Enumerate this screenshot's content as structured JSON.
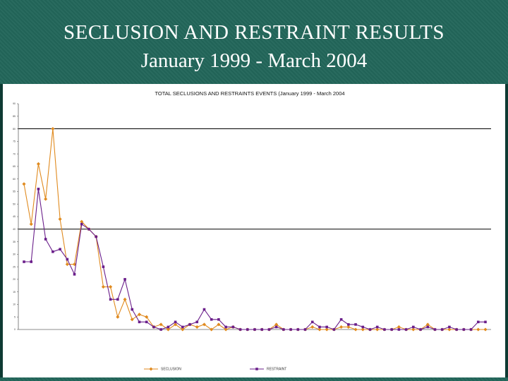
{
  "slide": {
    "title_line1": "SECLUSION AND RESTRAINT RESULTS",
    "title_line2": "January 1999 - March 2004"
  },
  "chart_data": {
    "type": "line",
    "title": "TOTAL SECLUSIONS AND RESTRAINTS EVENTS (January 1999 - March 2004",
    "xlabel": "",
    "ylabel": "",
    "ylim": [
      0,
      90
    ],
    "yticks": [
      0,
      5,
      10,
      15,
      20,
      25,
      30,
      35,
      40,
      45,
      50,
      55,
      60,
      65,
      70,
      75,
      80,
      85,
      90
    ],
    "reference_lines": [
      40,
      80
    ],
    "legend_position": "bottom",
    "colors": {
      "SECLUSION": "#e08a1e",
      "RESTRAINT": "#6a1e8a"
    },
    "series": [
      {
        "name": "SECLUSION",
        "values": [
          58,
          42,
          66,
          52,
          80,
          44,
          26,
          26,
          43,
          40,
          37,
          17,
          17,
          5,
          12,
          4,
          6,
          5,
          1,
          2,
          0,
          2,
          0,
          2,
          1,
          2,
          0,
          2,
          0,
          1,
          0,
          0,
          0,
          0,
          0,
          2,
          0,
          0,
          0,
          0,
          1,
          0,
          0,
          0,
          1,
          1,
          0,
          0,
          0,
          0,
          0,
          0,
          1,
          0,
          0,
          0,
          2,
          0,
          0,
          0,
          0,
          0,
          0,
          0,
          0
        ]
      },
      {
        "name": "RESTRAINT",
        "values": [
          27,
          27,
          56,
          36,
          31,
          32,
          28,
          22,
          42,
          40,
          37,
          25,
          12,
          12,
          20,
          8,
          3,
          3,
          1,
          0,
          1,
          3,
          1,
          2,
          3,
          8,
          4,
          4,
          1,
          1,
          0,
          0,
          0,
          0,
          0,
          1,
          0,
          0,
          0,
          0,
          3,
          1,
          1,
          0,
          4,
          2,
          2,
          1,
          0,
          1,
          0,
          0,
          0,
          0,
          1,
          0,
          1,
          0,
          0,
          1,
          0,
          0,
          0,
          3,
          3
        ]
      }
    ]
  }
}
